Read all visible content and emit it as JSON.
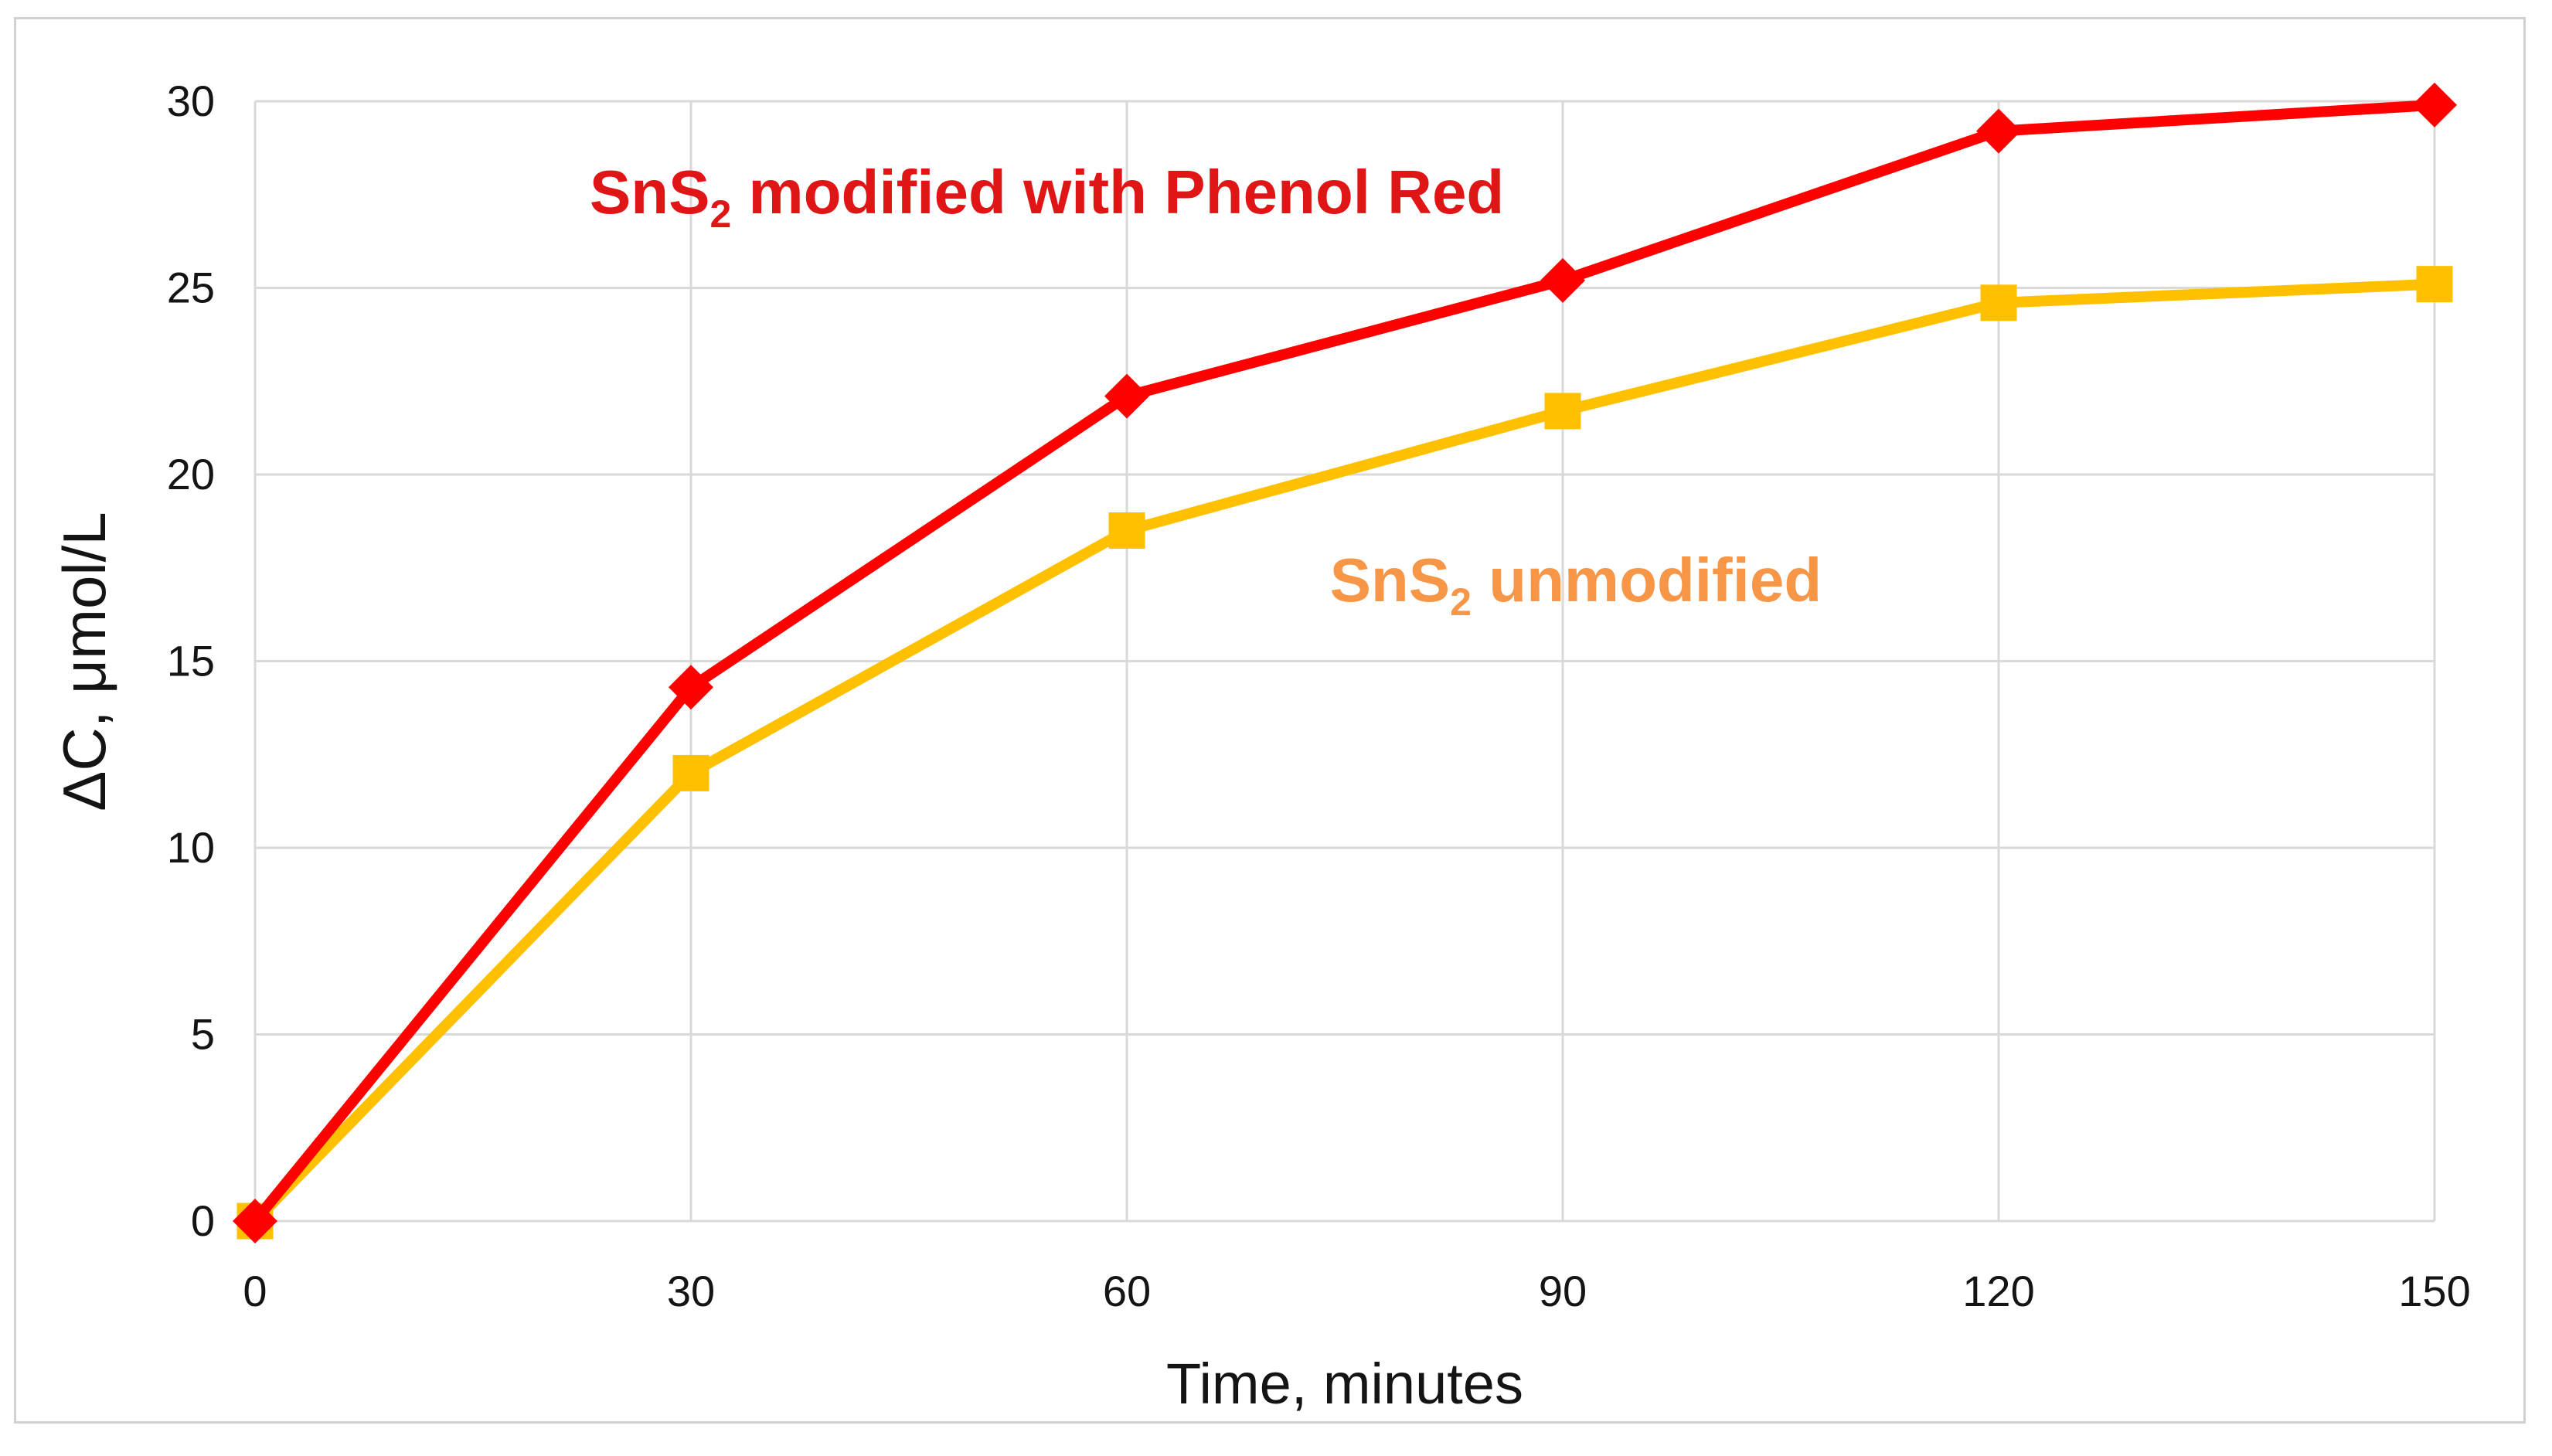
{
  "chart_data": {
    "type": "line",
    "title": "",
    "xlabel": "Time, minutes",
    "ylabel": "ΔC, μmol/L",
    "xlim": [
      0,
      150
    ],
    "ylim": [
      0,
      30
    ],
    "xticks": [
      0,
      30,
      60,
      90,
      120,
      150
    ],
    "yticks": [
      0,
      5,
      10,
      15,
      20,
      25,
      30
    ],
    "grid": true,
    "gridline_color": "#d9d9d9",
    "frame_color": "#d2d0d0",
    "legend_position": "inline-annotations",
    "x": [
      0,
      30,
      60,
      90,
      120,
      150
    ],
    "series": [
      {
        "name": "SnS2 modified with Phenol Red",
        "label": {
          "base": "SnS",
          "sub": "2",
          "rest": " modified with Phenol Red"
        },
        "label_color": "#e01616",
        "color": "#ff0000",
        "marker": "diamond",
        "values": [
          0,
          14.3,
          22.1,
          25.2,
          29.2,
          29.9
        ],
        "annotation_anchor": {
          "x": 54.5,
          "y": 27.6
        }
      },
      {
        "name": "SnS2 unmodified",
        "label": {
          "base": "SnS",
          "sub": "2",
          "rest": " unmodified"
        },
        "label_color": "#f79646",
        "color": "#ffc000",
        "marker": "square",
        "values": [
          0,
          12.0,
          18.5,
          21.7,
          24.6,
          25.1
        ],
        "annotation_anchor": {
          "x": 90.9,
          "y": 17.2
        }
      }
    ]
  }
}
